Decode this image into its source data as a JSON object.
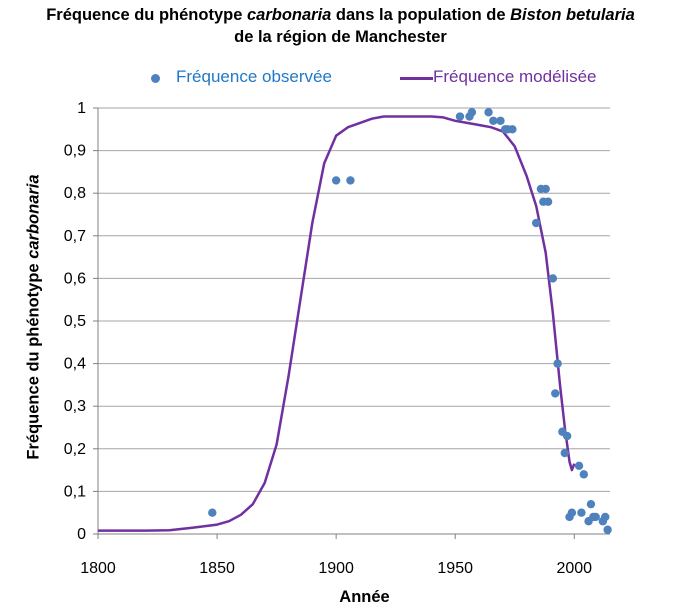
{
  "chart_data": {
    "type": "scatter",
    "title_prefix": "Fréquence du phénotype ",
    "title_italic_1": "carbonaria",
    "title_middle": " dans la population  de ",
    "title_italic_2": "Biston betularia",
    "title_line2": "de la région de Manchester",
    "xlabel": "Année",
    "ylabel_prefix": "Fréquence du phénotype ",
    "ylabel_italic": "carbonaria",
    "xlim": [
      1800,
      2015
    ],
    "ylim": [
      0,
      1
    ],
    "xticks": [
      1800,
      1850,
      1900,
      1950,
      2000
    ],
    "yticks": [
      "0",
      "0,1",
      "0,2",
      "0,3",
      "0,4",
      "0,5",
      "0,6",
      "0,7",
      "0,8",
      "0,9",
      "1"
    ],
    "grid": "horizontal",
    "legend_position": "top",
    "series": [
      {
        "name": "Fréquence observée",
        "kind": "scatter",
        "color": "#4f81bd",
        "points": [
          [
            1848,
            0.05
          ],
          [
            1900,
            0.83
          ],
          [
            1906,
            0.83
          ],
          [
            1952,
            0.98
          ],
          [
            1956,
            0.98
          ],
          [
            1957,
            0.99
          ],
          [
            1964,
            0.99
          ],
          [
            1966,
            0.97
          ],
          [
            1969,
            0.97
          ],
          [
            1971,
            0.95
          ],
          [
            1972,
            0.95
          ],
          [
            1974,
            0.95
          ],
          [
            1984,
            0.73
          ],
          [
            1986,
            0.81
          ],
          [
            1987,
            0.78
          ],
          [
            1988,
            0.81
          ],
          [
            1989,
            0.78
          ],
          [
            1991,
            0.6
          ],
          [
            1992,
            0.33
          ],
          [
            1993,
            0.4
          ],
          [
            1995,
            0.24
          ],
          [
            1996,
            0.19
          ],
          [
            1997,
            0.23
          ],
          [
            1998,
            0.04
          ],
          [
            1999,
            0.05
          ],
          [
            2002,
            0.16
          ],
          [
            2003,
            0.05
          ],
          [
            2004,
            0.14
          ],
          [
            2006,
            0.03
          ],
          [
            2007,
            0.07
          ],
          [
            2008,
            0.04
          ],
          [
            2009,
            0.04
          ],
          [
            2012,
            0.03
          ],
          [
            2013,
            0.04
          ],
          [
            2014,
            0.01
          ]
        ]
      },
      {
        "name": "Fréquence modélisée",
        "kind": "line",
        "color": "#7030a0",
        "points": [
          [
            1800,
            0.008
          ],
          [
            1810,
            0.008
          ],
          [
            1820,
            0.008
          ],
          [
            1830,
            0.009
          ],
          [
            1840,
            0.015
          ],
          [
            1850,
            0.022
          ],
          [
            1855,
            0.03
          ],
          [
            1860,
            0.045
          ],
          [
            1865,
            0.07
          ],
          [
            1870,
            0.12
          ],
          [
            1875,
            0.21
          ],
          [
            1880,
            0.37
          ],
          [
            1885,
            0.55
          ],
          [
            1890,
            0.73
          ],
          [
            1895,
            0.87
          ],
          [
            1900,
            0.935
          ],
          [
            1905,
            0.955
          ],
          [
            1910,
            0.965
          ],
          [
            1915,
            0.975
          ],
          [
            1920,
            0.98
          ],
          [
            1930,
            0.98
          ],
          [
            1940,
            0.98
          ],
          [
            1945,
            0.978
          ],
          [
            1950,
            0.97
          ],
          [
            1955,
            0.965
          ],
          [
            1960,
            0.96
          ],
          [
            1965,
            0.955
          ],
          [
            1970,
            0.945
          ],
          [
            1975,
            0.91
          ],
          [
            1980,
            0.84
          ],
          [
            1984,
            0.77
          ],
          [
            1988,
            0.66
          ],
          [
            1991,
            0.52
          ],
          [
            1994,
            0.35
          ],
          [
            1996,
            0.25
          ],
          [
            1998,
            0.17
          ],
          [
            1999,
            0.15
          ],
          [
            2000,
            0.165
          ]
        ]
      }
    ]
  }
}
